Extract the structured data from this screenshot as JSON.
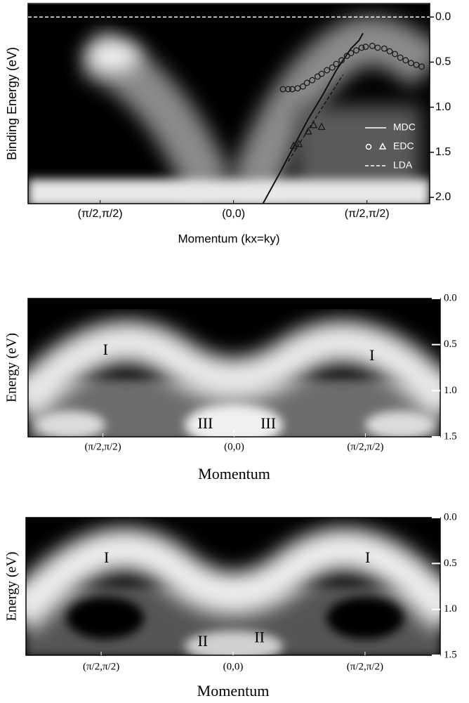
{
  "chart_data": [
    {
      "type": "line",
      "ylabel": "Binding Energy (eV)",
      "xlabel": "Momentum (kx=ky)",
      "xlim": [
        -1.54,
        1.47
      ],
      "xticks": [
        {
          "value": -1,
          "label": "(π/2,π/2)"
        },
        {
          "value": 0,
          "label": "(0,0)"
        },
        {
          "value": 1,
          "label": "(π/2,π/2)"
        }
      ],
      "ylim": [
        -0.15,
        2.07
      ],
      "y_inverted": true,
      "yticks": [
        {
          "value": 0,
          "label": "0.0"
        },
        0.5,
        {
          "value": 1,
          "label": "1.0"
        },
        1.5,
        {
          "value": 2,
          "label": "2.0"
        }
      ],
      "reference_line": 0,
      "series": [
        {
          "name": "MDC",
          "style": "solid",
          "color": "#111111",
          "x": [
            0.22,
            0.35,
            0.46,
            0.56,
            0.67,
            0.77,
            0.88,
            0.94,
            0.97
          ],
          "values": [
            2.07,
            1.72,
            1.41,
            1.13,
            0.86,
            0.59,
            0.35,
            0.26,
            0.18
          ]
        },
        {
          "name": "EDC",
          "style": "circle",
          "color": "#1a1a1a",
          "x": [
            0.37,
            0.41,
            0.44,
            0.48,
            0.52,
            0.55,
            0.59,
            0.63,
            0.66,
            0.7,
            0.74,
            0.77,
            0.81,
            0.85,
            0.88,
            0.92,
            0.96,
            0.99,
            1.04,
            1.08,
            1.13,
            1.17,
            1.21,
            1.25,
            1.29,
            1.33,
            1.37,
            1.41
          ],
          "values": [
            0.8,
            0.8,
            0.8,
            0.79,
            0.77,
            0.73,
            0.7,
            0.66,
            0.63,
            0.59,
            0.56,
            0.52,
            0.48,
            0.43,
            0.4,
            0.37,
            0.34,
            0.33,
            0.32,
            0.34,
            0.35,
            0.38,
            0.41,
            0.45,
            0.48,
            0.51,
            0.53,
            0.55
          ]
        },
        {
          "style": "triangle",
          "color": "#1a1a1a",
          "x": [
            0.45,
            0.49,
            0.56,
            0.6,
            0.66
          ],
          "values": [
            1.43,
            1.41,
            1.27,
            1.2,
            1.22
          ]
        },
        {
          "name": "LDA",
          "style": "dashed",
          "color": "#111111",
          "x": [
            0.41,
            0.82
          ],
          "values": [
            1.6,
            0.64
          ]
        }
      ]
    },
    {
      "type": "image",
      "ylabel": "Energy (eV)",
      "xlabel": "Momentum",
      "xlim": [
        -1.57,
        1.57
      ],
      "xticks": [
        {
          "value": -1,
          "label": "(π/2,π/2)"
        },
        {
          "value": 0,
          "label": "(0,0)"
        },
        {
          "value": 1,
          "label": "(π/2,π/2)"
        }
      ],
      "ylim": [
        0,
        1.5
      ],
      "y_inverted": true,
      "yticks": [
        {
          "value": 0,
          "label": "0.0"
        },
        0.5,
        {
          "value": 1,
          "label": "1.0"
        },
        1.5
      ],
      "annotations": [
        {
          "text": "I",
          "x": -0.98,
          "y": 0.57
        },
        {
          "text": "I",
          "x": 1.05,
          "y": 0.63
        },
        {
          "text": "III",
          "x": -0.22,
          "y": 1.37
        },
        {
          "text": "III",
          "x": 0.26,
          "y": 1.37
        }
      ]
    },
    {
      "type": "image",
      "ylabel": "Energy (eV)",
      "xlabel": "Momentum",
      "xlim": [
        -1.57,
        1.57
      ],
      "xticks": [
        {
          "value": -1,
          "label": "(π/2,π/2)"
        },
        {
          "value": 0,
          "label": "(0,0)"
        },
        {
          "value": 1,
          "label": "(π/2,π/2)"
        }
      ],
      "ylim": [
        0,
        1.5
      ],
      "y_inverted": true,
      "yticks": [
        {
          "value": 0,
          "label": "0.0"
        },
        0.5,
        {
          "value": 1,
          "label": "1.0"
        },
        1.5
      ],
      "annotations": [
        {
          "text": "I",
          "x": -0.96,
          "y": 0.45
        },
        {
          "text": "I",
          "x": 1.02,
          "y": 0.45
        },
        {
          "text": "II",
          "x": -0.23,
          "y": 1.36
        },
        {
          "text": "II",
          "x": 0.2,
          "y": 1.32
        }
      ]
    }
  ]
}
